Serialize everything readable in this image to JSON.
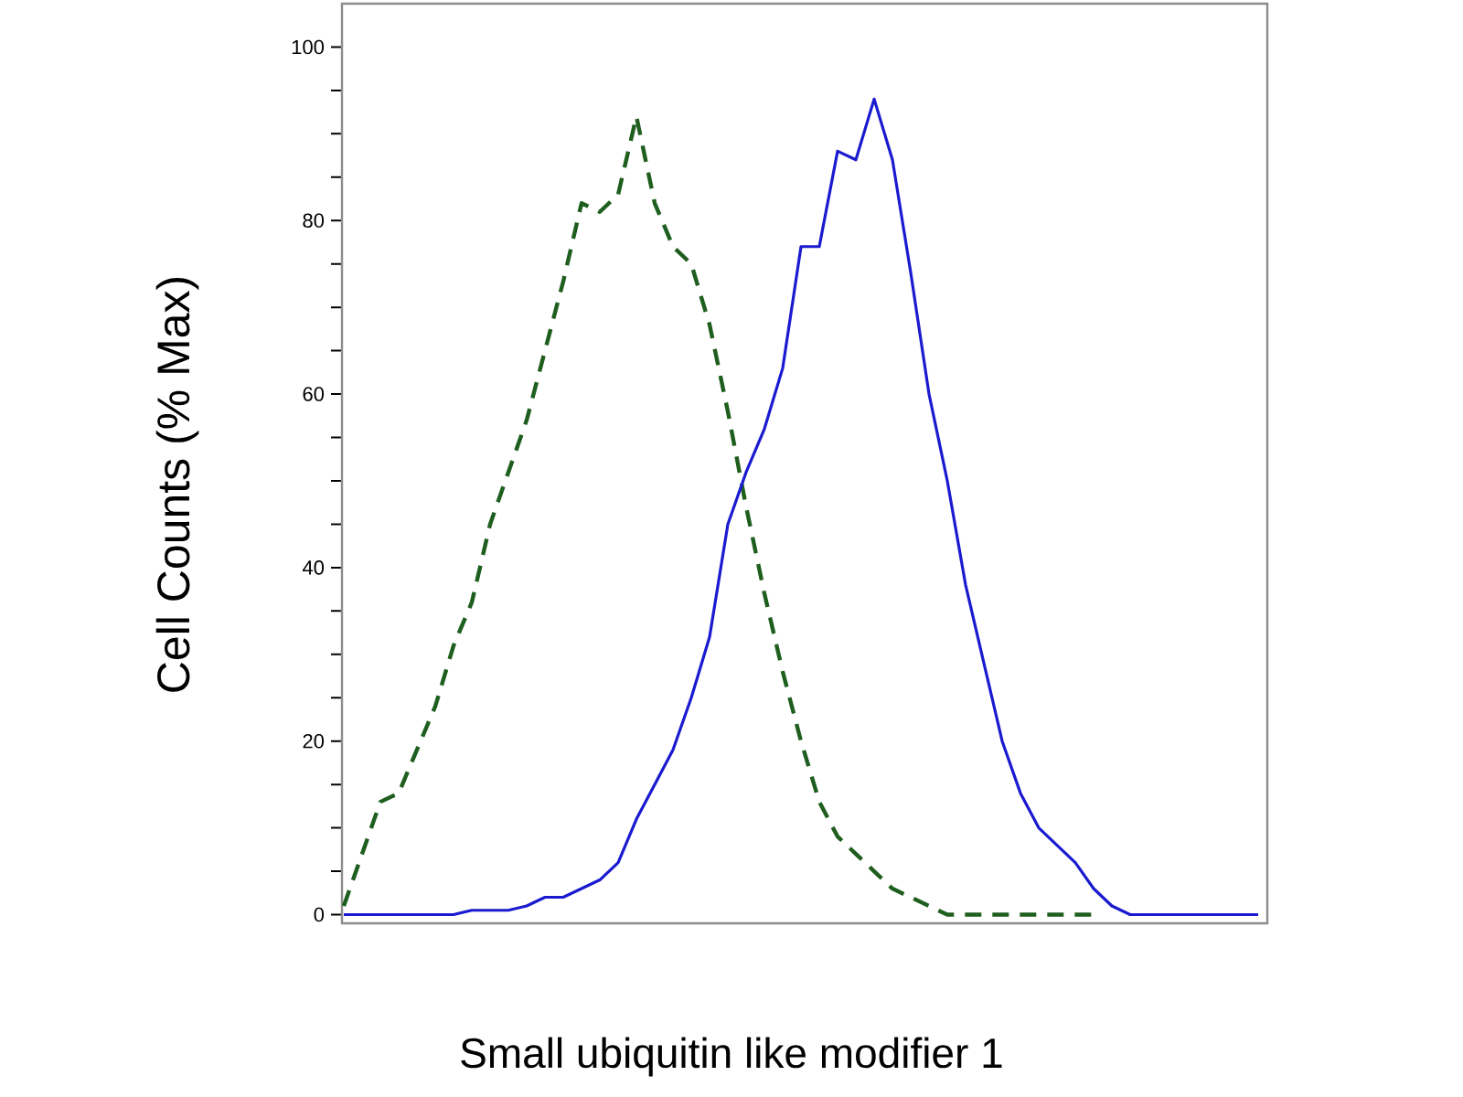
{
  "chart_data": {
    "type": "line",
    "xlabel": "Small ubiquitin like modifier 1",
    "ylabel": "Cell Counts (% Max)",
    "categories": [
      null,
      null,
      null,
      null,
      null,
      null,
      null,
      null,
      null,
      null,
      null,
      null,
      null,
      null,
      null,
      null,
      null,
      null,
      null,
      null,
      null,
      null,
      null,
      null,
      null,
      null,
      null,
      null,
      null,
      null,
      null,
      null,
      null,
      null,
      null,
      null,
      null,
      null,
      null,
      null,
      null,
      null,
      null,
      null,
      null,
      null,
      null,
      null,
      null,
      null,
      null
    ],
    "ylim": [
      -1,
      105
    ],
    "yticks": [
      0,
      {
        "value": 5,
        "label": null
      },
      {
        "value": 10,
        "label": null
      },
      {
        "value": 15,
        "label": null
      },
      20,
      {
        "value": 25,
        "label": null
      },
      {
        "value": 30,
        "label": null
      },
      {
        "value": 35,
        "label": null
      },
      40,
      {
        "value": 45,
        "label": null
      },
      {
        "value": 50,
        "label": null
      },
      {
        "value": 55,
        "label": null
      },
      60,
      {
        "value": 65,
        "label": null
      },
      {
        "value": 70,
        "label": null
      },
      {
        "value": 75,
        "label": null
      },
      80,
      {
        "value": 85,
        "label": null
      },
      {
        "value": 90,
        "label": null
      },
      {
        "value": 95,
        "label": null
      },
      100
    ],
    "grid": false,
    "series": [
      {
        "color": "#1e5e1e",
        "line_style": "dashed",
        "values": [
          1,
          7,
          13,
          14,
          19,
          24,
          31,
          36,
          45,
          51,
          57,
          65,
          73,
          82,
          81,
          83,
          92,
          82,
          77,
          75,
          68,
          58,
          47,
          37,
          28,
          20,
          13,
          9,
          7,
          5,
          3,
          2,
          1,
          0,
          0,
          0,
          0,
          0,
          0,
          0,
          0,
          0,
          null,
          null,
          null,
          null,
          null,
          null,
          null,
          null,
          null
        ]
      },
      {
        "color": "#1a1ad0",
        "line_style": "solid",
        "values": [
          0,
          0,
          0,
          0,
          0,
          0,
          0,
          0.5,
          0.5,
          0.5,
          1,
          2,
          2,
          3,
          4,
          6,
          11,
          15,
          19,
          25,
          32,
          45,
          51,
          56,
          63,
          77,
          77,
          88,
          87,
          94,
          87,
          74,
          60,
          50,
          38,
          29,
          20,
          14,
          10,
          8,
          6,
          3,
          1,
          0,
          0,
          0,
          0,
          0,
          0,
          0,
          0
        ]
      }
    ]
  }
}
